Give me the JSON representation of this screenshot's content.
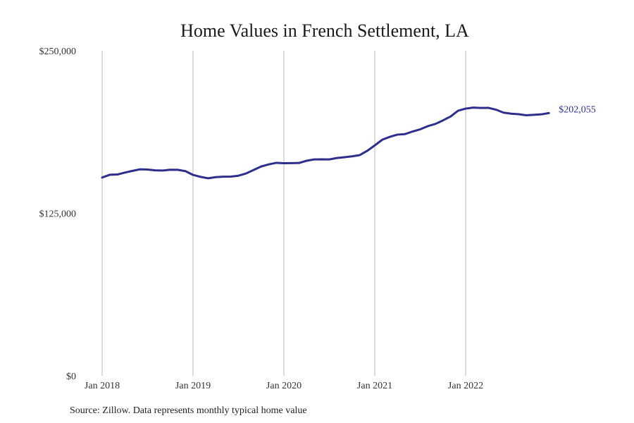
{
  "chart_data": {
    "type": "line",
    "title": "Home Values in French Settlement, LA",
    "xlabel": "",
    "ylabel": "",
    "x_start": "2018-01",
    "ylim": [
      0,
      250000
    ],
    "y_ticks": [
      {
        "value": 0,
        "label": "$0"
      },
      {
        "value": 125000,
        "label": "$125,000"
      },
      {
        "value": 250000,
        "label": "$250,000"
      }
    ],
    "x_ticks": [
      {
        "value": "2018-01",
        "label": "Jan 2018"
      },
      {
        "value": "2019-01",
        "label": "Jan 2019"
      },
      {
        "value": "2020-01",
        "label": "Jan 2020"
      },
      {
        "value": "2021-01",
        "label": "Jan 2021"
      },
      {
        "value": "2022-01",
        "label": "Jan 2022"
      }
    ],
    "grid": "vertical",
    "line_color": "#2e2e8c",
    "series": [
      {
        "x_start": "2018-01",
        "values": [
          152500,
          154600,
          154800,
          156300,
          157600,
          158800,
          158600,
          158000,
          157900,
          158500,
          158400,
          157400,
          154500,
          153000,
          151900,
          152800,
          153100,
          153200,
          153900,
          155600,
          158300,
          161000,
          162600,
          163800,
          163500,
          163600,
          163700,
          165400,
          166400,
          166500,
          166400,
          167500,
          168100,
          168800,
          169700,
          173000,
          177200,
          181600,
          183800,
          185500,
          185900,
          187900,
          189600,
          192000,
          193700,
          196400,
          199400,
          203900,
          205500,
          206300,
          206000,
          206100,
          204700,
          202400,
          201600,
          201200,
          200400,
          200700,
          201100,
          202055
        ],
        "end_label": "$202,055"
      }
    ]
  },
  "footer": {
    "source": "Source: Zillow. Data represents monthly typical home value"
  }
}
